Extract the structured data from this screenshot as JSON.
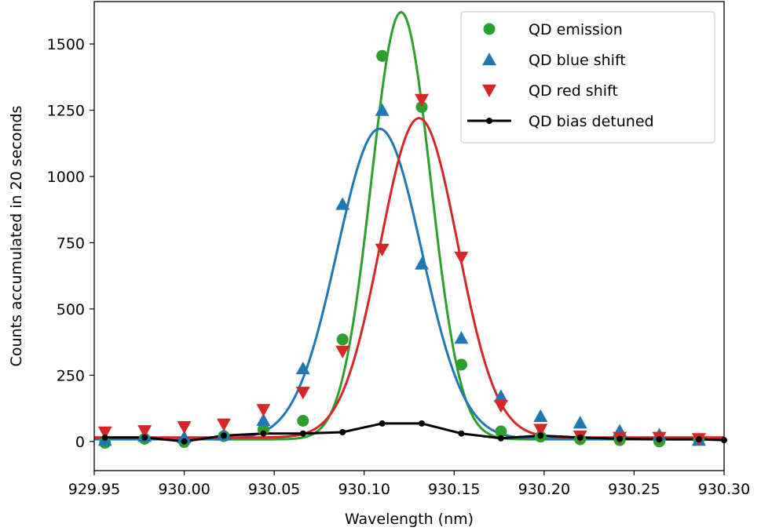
{
  "chart_data": {
    "type": "scatter",
    "title": "",
    "xlabel": "Wavelength (nm)",
    "ylabel": "Counts accumulated in 20 seconds",
    "xlim": [
      929.95,
      930.3
    ],
    "ylim": [
      -110,
      1660
    ],
    "xticks": [
      929.95,
      930.0,
      930.05,
      930.1,
      930.15,
      930.2,
      930.25,
      930.3
    ],
    "xtick_labels": [
      "929.95",
      "930.00",
      "930.05",
      "930.10",
      "930.15",
      "930.20",
      "930.25",
      "930.30"
    ],
    "yticks": [
      0,
      250,
      500,
      750,
      1000,
      1250,
      1500
    ],
    "ytick_labels": [
      "0",
      "250",
      "500",
      "750",
      "1000",
      "1250",
      "1500"
    ],
    "grid": false,
    "legend_position": "top-right",
    "series": [
      {
        "name": "QD emission",
        "color": "#2ca02c",
        "marker": "circle",
        "x": [
          929.956,
          929.978,
          930.0,
          930.022,
          930.044,
          930.066,
          930.088,
          930.11,
          930.132,
          930.154,
          930.176,
          930.198,
          930.22,
          930.242,
          930.264,
          930.286
        ],
        "y": [
          -5,
          10,
          -2,
          20,
          45,
          78,
          385,
          1455,
          1262,
          290,
          38,
          18,
          8,
          5,
          0,
          8
        ],
        "fit": {
          "name": "Gaussian",
          "center": 930.1205,
          "amplitude": 1612,
          "sigma": 0.0165,
          "offset": 8
        }
      },
      {
        "name": "QD blue shift",
        "color": "#1f77b4",
        "marker": "triangle-up",
        "x": [
          929.956,
          929.978,
          930.0,
          930.022,
          930.044,
          930.066,
          930.088,
          930.11,
          930.132,
          930.154,
          930.176,
          930.198,
          930.22,
          930.242,
          930.264,
          930.286
        ],
        "y": [
          5,
          20,
          15,
          25,
          80,
          275,
          895,
          1250,
          670,
          390,
          170,
          95,
          70,
          40,
          25,
          5
        ],
        "fit": {
          "name": "Gaussian",
          "center": 930.1085,
          "amplitude": 1170,
          "sigma": 0.0235,
          "offset": 10
        }
      },
      {
        "name": "QD red shift",
        "color": "#d62728",
        "marker": "triangle-down",
        "x": [
          929.956,
          929.978,
          930.0,
          930.022,
          930.044,
          930.066,
          930.088,
          930.11,
          930.132,
          930.154,
          930.176,
          930.198,
          930.22,
          930.242,
          930.264,
          930.286
        ],
        "y": [
          35,
          40,
          55,
          65,
          120,
          185,
          340,
          725,
          1290,
          695,
          135,
          45,
          20,
          15,
          15,
          10
        ],
        "fit": {
          "name": "Gaussian",
          "center": 930.1305,
          "amplitude": 1205,
          "sigma": 0.0215,
          "offset": 15
        }
      },
      {
        "name": "QD bias detuned",
        "color": "#000000",
        "marker": "dot-line",
        "x": [
          929.956,
          929.978,
          930.0,
          930.022,
          930.044,
          930.066,
          930.088,
          930.11,
          930.132,
          930.154,
          930.176,
          930.198,
          930.22,
          930.242,
          930.264,
          930.286,
          930.3
        ],
        "y": [
          15,
          15,
          0,
          22,
          30,
          30,
          35,
          68,
          68,
          30,
          12,
          22,
          15,
          10,
          8,
          8,
          5
        ]
      }
    ]
  }
}
